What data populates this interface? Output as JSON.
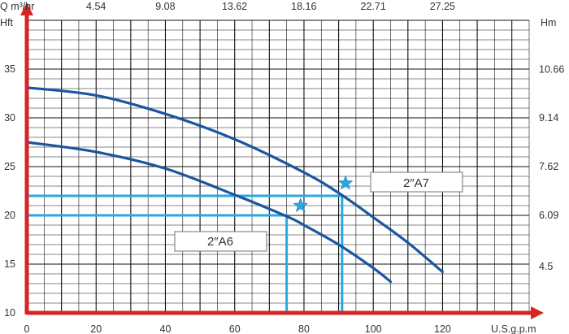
{
  "chart_data": {
    "type": "line",
    "x_units": "U.S.g.p.m",
    "y_units_left": "Hft",
    "y_units_right": "Hm",
    "top_units": "Q m³/hr",
    "xlim": [
      0,
      145
    ],
    "ylim": [
      10,
      40
    ],
    "x_ticks": [
      "0",
      "20",
      "40",
      "60",
      "80",
      "100",
      "120"
    ],
    "y_ticks_left": [
      "10",
      "15",
      "20",
      "25",
      "30",
      "35"
    ],
    "y_ticks_right": [
      "4.5",
      "6.09",
      "7.62",
      "9.14",
      "10.66"
    ],
    "x_ticks_top": [
      "4.54",
      "9.08",
      "13.62",
      "18.16",
      "22.71",
      "27.25"
    ],
    "grid": true,
    "series": [
      {
        "name": "2″A7",
        "color": "#1a56a0",
        "x": [
          0,
          20,
          40,
          60,
          80,
          90,
          100,
          110,
          120
        ],
        "y": [
          33.1,
          32.3,
          30.4,
          27.8,
          24.4,
          22.3,
          19.8,
          17.2,
          14.2
        ]
      },
      {
        "name": "2″A6",
        "color": "#1a56a0",
        "x": [
          0,
          20,
          40,
          60,
          75,
          80,
          90,
          100,
          105
        ],
        "y": [
          27.5,
          26.5,
          24.8,
          22.1,
          19.9,
          19.0,
          17.0,
          14.6,
          13.2
        ]
      }
    ],
    "operating_points": [
      {
        "series": "2″A7",
        "x": 91,
        "y": 22,
        "star": [
          92,
          23.3
        ]
      },
      {
        "series": "2″A6",
        "x": 75,
        "y": 20,
        "star": [
          79,
          21
        ]
      }
    ],
    "guide_color": "#29a8e0",
    "star_color": "#29a8e0",
    "axis_color": "#d62424"
  }
}
